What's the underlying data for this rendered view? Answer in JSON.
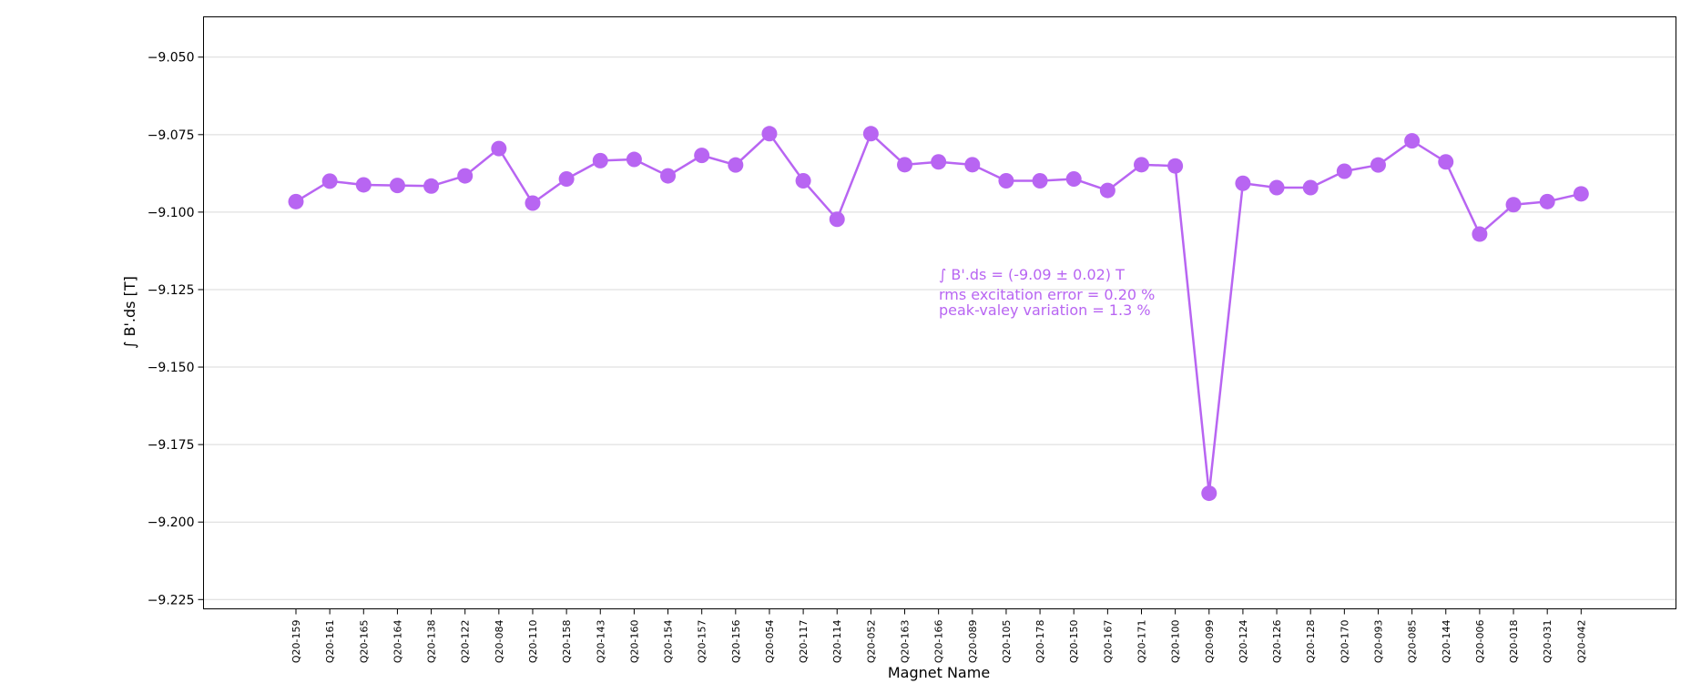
{
  "chart_data": {
    "type": "line",
    "xlabel": "Magnet Name",
    "ylabel": "∫ B'.ds [T]",
    "ylim": [
      -9.228,
      -9.037
    ],
    "yticks": [
      -9.05,
      -9.075,
      -9.1,
      -9.125,
      -9.15,
      -9.175,
      -9.2,
      -9.225
    ],
    "ytick_labels": [
      "−9.050",
      "−9.075",
      "−9.100",
      "−9.125",
      "−9.150",
      "−9.175",
      "−9.200",
      "−9.225"
    ],
    "grid": "horizontal",
    "color": "#b865f2",
    "categories": [
      "Q20-159",
      "Q20-161",
      "Q20-165",
      "Q20-164",
      "Q20-138",
      "Q20-122",
      "Q20-084",
      "Q20-110",
      "Q20-158",
      "Q20-143",
      "Q20-160",
      "Q20-154",
      "Q20-157",
      "Q20-156",
      "Q20-054",
      "Q20-117",
      "Q20-114",
      "Q20-052",
      "Q20-163",
      "Q20-166",
      "Q20-089",
      "Q20-105",
      "Q20-178",
      "Q20-150",
      "Q20-167",
      "Q20-171",
      "Q20-100",
      "Q20-099",
      "Q20-124",
      "Q20-126",
      "Q20-128",
      "Q20-170",
      "Q20-093",
      "Q20-085",
      "Q20-144",
      "Q20-006",
      "Q20-018",
      "Q20-031",
      "Q20-042"
    ],
    "values": [
      -9.0966,
      -9.09,
      -9.0912,
      -9.0914,
      -9.0916,
      -9.0883,
      -9.0795,
      -9.0971,
      -9.0893,
      -9.0834,
      -9.083,
      -9.0883,
      -9.0817,
      -9.0848,
      -9.0747,
      -9.0899,
      -9.1023,
      -9.0747,
      -9.0847,
      -9.0838,
      -9.0847,
      -9.0899,
      -9.0899,
      -9.0893,
      -9.093,
      -9.0847,
      -9.0851,
      -9.1907,
      -9.0907,
      -9.0921,
      -9.0921,
      -9.0868,
      -9.0848,
      -9.077,
      -9.0838,
      -9.1071,
      -9.0976,
      -9.0966,
      -9.0941
    ],
    "annotations": [
      "∫ B'.ds = (-9.09 ± 0.02) T",
      "rms excitation error = 0.20 %",
      "peak-valey variation = 1.3 %"
    ]
  }
}
